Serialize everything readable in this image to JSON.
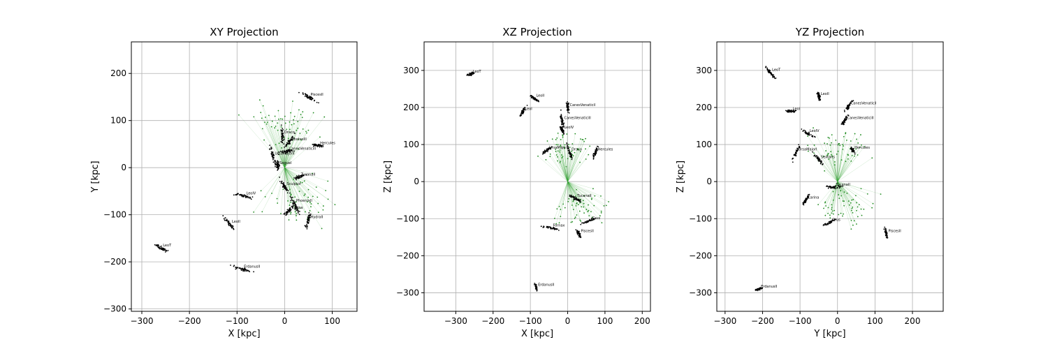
{
  "colors": {
    "particles": "#000000",
    "streams": "#1f8a1f",
    "stream_lines": "#2ca02c",
    "grid": "#b0b0b0"
  },
  "chart_data": [
    {
      "type": "scatter",
      "title": "XY Projection",
      "xlabel": "X [kpc]",
      "ylabel": "Y [kpc]",
      "xlim": [
        -322,
        152
      ],
      "ylim": [
        -305,
        267
      ],
      "xticks": [
        -300,
        -200,
        -100,
        0,
        100
      ],
      "yticks": [
        -300,
        -200,
        -100,
        0,
        100,
        200
      ],
      "grid": true,
      "objects": [
        {
          "name": "CanesVenaticiII",
          "x": 5,
          "y": 35
        },
        {
          "name": "BootesIII",
          "x": 10,
          "y": 55
        },
        {
          "name": "Hercules",
          "x": 70,
          "y": 47
        },
        {
          "name": "UrsaMajorII",
          "x": -25,
          "y": 25
        },
        {
          "name": "SegueI",
          "x": -15,
          "y": 5
        },
        {
          "name": "LeoT",
          "x": -260,
          "y": -170
        },
        {
          "name": "LeoIV",
          "x": -85,
          "y": -60
        },
        {
          "name": "LeoII",
          "x": -115,
          "y": -120
        },
        {
          "name": "Draco",
          "x": -5,
          "y": 70
        },
        {
          "name": "ErdanusII",
          "x": -90,
          "y": -215
        },
        {
          "name": "PhoenixII",
          "x": 20,
          "y": -75
        },
        {
          "name": "HydraII",
          "x": 50,
          "y": -110
        },
        {
          "name": "PiscesII",
          "x": 50,
          "y": 150
        },
        {
          "name": "Sculptor",
          "x": 0,
          "y": -40
        },
        {
          "name": "Carina",
          "x": 10,
          "y": -90
        },
        {
          "name": "TucanaII",
          "x": 30,
          "y": -20
        }
      ]
    },
    {
      "type": "scatter",
      "title": "XZ Projection",
      "xlabel": "X [kpc]",
      "ylabel": "Z [kpc]",
      "xlim": [
        -385,
        222
      ],
      "ylim": [
        -350,
        377
      ],
      "xticks": [
        -300,
        -200,
        -100,
        0,
        100,
        200
      ],
      "yticks": [
        -300,
        -200,
        -100,
        0,
        100,
        200,
        300
      ],
      "grid": true,
      "objects": [
        {
          "name": "LeoT",
          "x": -260,
          "y": 290
        },
        {
          "name": "LeoII",
          "x": -90,
          "y": 225
        },
        {
          "name": "LeoI",
          "x": -120,
          "y": 190
        },
        {
          "name": "CanesVenaticiI",
          "x": 0,
          "y": 200
        },
        {
          "name": "CanesVenaticiII",
          "x": -15,
          "y": 165
        },
        {
          "name": "LeoIV",
          "x": -15,
          "y": 140
        },
        {
          "name": "UrsaMajorI",
          "x": -55,
          "y": 85
        },
        {
          "name": "Draco",
          "x": 5,
          "y": 80
        },
        {
          "name": "Hercules",
          "x": 75,
          "y": 80
        },
        {
          "name": "Fornax",
          "x": -45,
          "y": -125
        },
        {
          "name": "Grus",
          "x": 60,
          "y": -105
        },
        {
          "name": "PiscesII",
          "x": 30,
          "y": -140
        },
        {
          "name": "TucanaII",
          "x": 20,
          "y": -45
        },
        {
          "name": "ErdanusII",
          "x": -85,
          "y": -285
        }
      ]
    },
    {
      "type": "scatter",
      "title": "YZ Projection",
      "xlabel": "Y [kpc]",
      "ylabel": "Z [kpc]",
      "xlim": [
        -322,
        282
      ],
      "ylim": [
        -350,
        377
      ],
      "xticks": [
        -300,
        -200,
        -100,
        0,
        100,
        200
      ],
      "yticks": [
        -300,
        -200,
        -100,
        0,
        100,
        200,
        300
      ],
      "grid": true,
      "objects": [
        {
          "name": "LeoT",
          "x": -180,
          "y": 295
        },
        {
          "name": "LeoII",
          "x": -50,
          "y": 230
        },
        {
          "name": "LeoI",
          "x": -125,
          "y": 190
        },
        {
          "name": "CanesVenaticiI",
          "x": 30,
          "y": 205
        },
        {
          "name": "CanesVenaticiII",
          "x": 20,
          "y": 165
        },
        {
          "name": "LeoIV",
          "x": -80,
          "y": 130
        },
        {
          "name": "UrsaMajorI",
          "x": -110,
          "y": 80
        },
        {
          "name": "Hercules",
          "x": 40,
          "y": 85
        },
        {
          "name": "Sextans",
          "x": -50,
          "y": 60
        },
        {
          "name": "Carina",
          "x": -85,
          "y": -50
        },
        {
          "name": "Grus",
          "x": -20,
          "y": -110
        },
        {
          "name": "PiscesII",
          "x": 130,
          "y": -140
        },
        {
          "name": "TucanaII",
          "x": -10,
          "y": -15
        },
        {
          "name": "ErdanusII",
          "x": -210,
          "y": -290
        }
      ]
    }
  ]
}
